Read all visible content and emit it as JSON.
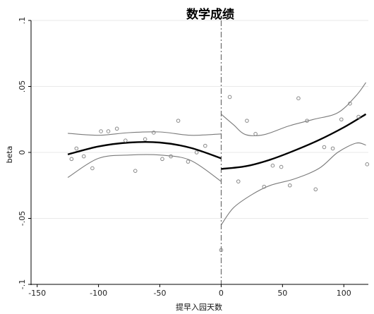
{
  "chart_data": {
    "type": "scatter",
    "title": "数学成绩",
    "xlabel": "提早入园天数",
    "ylabel": "beta",
    "xlim": [
      -155,
      120
    ],
    "ylim": [
      -0.1,
      0.1
    ],
    "x_ticks": [
      -150,
      -100,
      -50,
      0,
      50,
      100
    ],
    "x_tick_labels": [
      "-150",
      "-100",
      "-50",
      "0",
      "50",
      "100"
    ],
    "y_ticks": [
      -0.1,
      -0.05,
      0,
      0.05,
      0.1
    ],
    "y_tick_labels": [
      "-.1",
      "-.05",
      "0",
      ".05",
      ".1"
    ],
    "gridlines": "horizontal",
    "cutoff_x": 0,
    "points": [
      {
        "x": -122,
        "y": -0.005
      },
      {
        "x": -118,
        "y": 0.003
      },
      {
        "x": -112,
        "y": -0.003
      },
      {
        "x": -105,
        "y": -0.012
      },
      {
        "x": -98,
        "y": 0.016
      },
      {
        "x": -92,
        "y": 0.016
      },
      {
        "x": -85,
        "y": 0.018
      },
      {
        "x": -78,
        "y": 0.009
      },
      {
        "x": -70,
        "y": -0.014
      },
      {
        "x": -62,
        "y": 0.01
      },
      {
        "x": -55,
        "y": 0.015
      },
      {
        "x": -48,
        "y": -0.005
      },
      {
        "x": -41,
        "y": -0.003
      },
      {
        "x": -35,
        "y": 0.024
      },
      {
        "x": -27,
        "y": -0.007
      },
      {
        "x": -20,
        "y": 0.0
      },
      {
        "x": -13,
        "y": 0.005
      },
      {
        "x": 0,
        "y": -0.074
      },
      {
        "x": 7,
        "y": 0.042
      },
      {
        "x": 14,
        "y": -0.022
      },
      {
        "x": 21,
        "y": 0.024
      },
      {
        "x": 28,
        "y": 0.014
      },
      {
        "x": 35,
        "y": -0.026
      },
      {
        "x": 42,
        "y": -0.01
      },
      {
        "x": 49,
        "y": -0.011
      },
      {
        "x": 56,
        "y": -0.025
      },
      {
        "x": 63,
        "y": 0.041
      },
      {
        "x": 70,
        "y": 0.024
      },
      {
        "x": 77,
        "y": -0.028
      },
      {
        "x": 84,
        "y": 0.004
      },
      {
        "x": 91,
        "y": 0.003
      },
      {
        "x": 98,
        "y": 0.025
      },
      {
        "x": 105,
        "y": 0.037
      },
      {
        "x": 112,
        "y": 0.027
      },
      {
        "x": 119,
        "y": -0.009
      }
    ],
    "series": [
      {
        "role": "fit",
        "side": "left",
        "x": [
          -125,
          -100,
          -75,
          -50,
          -25,
          0
        ],
        "y": [
          -0.0015,
          0.0045,
          0.0075,
          0.0075,
          0.0035,
          -0.0045
        ]
      },
      {
        "role": "ci_upper",
        "side": "left",
        "x": [
          -125,
          -100,
          -75,
          -50,
          -25,
          0
        ],
        "y": [
          0.0145,
          0.013,
          0.015,
          0.0155,
          0.013,
          0.014
        ]
      },
      {
        "role": "ci_lower",
        "side": "left",
        "x": [
          -125,
          -100,
          -75,
          -50,
          -25,
          0
        ],
        "y": [
          -0.019,
          -0.0045,
          -0.002,
          -0.002,
          -0.006,
          -0.022
        ]
      },
      {
        "role": "fit",
        "side": "right",
        "x": [
          0,
          20,
          40,
          60,
          80,
          100,
          118
        ],
        "y": [
          -0.0125,
          -0.0105,
          -0.0055,
          0.0015,
          0.0095,
          0.019,
          0.029
        ]
      },
      {
        "role": "ci_upper",
        "side": "right",
        "x": [
          0,
          10,
          20,
          35,
          55,
          75,
          95,
          110,
          118
        ],
        "y": [
          0.029,
          0.021,
          0.0135,
          0.0135,
          0.02,
          0.025,
          0.03,
          0.043,
          0.053
        ]
      },
      {
        "role": "ci_lower",
        "side": "right",
        "x": [
          0,
          10,
          25,
          40,
          60,
          80,
          95,
          110,
          118
        ],
        "y": [
          -0.055,
          -0.042,
          -0.032,
          -0.025,
          -0.02,
          -0.012,
          0.0,
          0.007,
          0.0055
        ]
      }
    ],
    "colors": {
      "fit": "#000000",
      "ci": "#7a7a7a",
      "points": "#888888",
      "cutoff": "#555555"
    }
  }
}
